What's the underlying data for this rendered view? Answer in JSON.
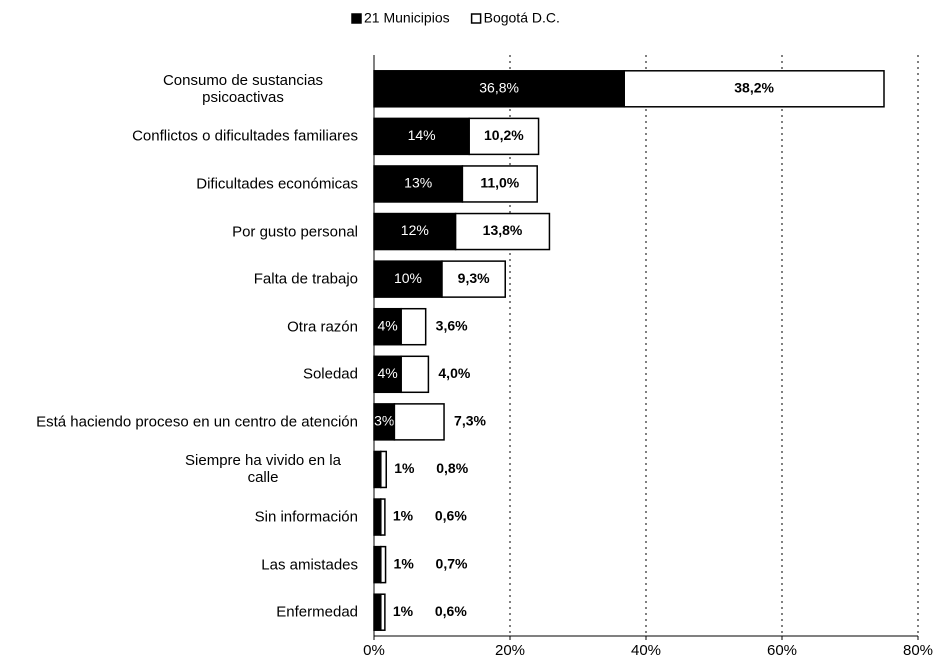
{
  "chart_data": {
    "type": "stacked_bar_horizontal",
    "categories": [
      "Consumo de sustancias psicoactivas",
      "Conflictos o dificultades familiares",
      "Dificultades económicas",
      "Por gusto personal",
      "Falta de trabajo",
      "Otra razón",
      "Soledad",
      "Está haciendo proceso en un centro de atención",
      "Siempre ha vivido en la calle",
      "Sin información",
      "Las amistades",
      "Enfermedad"
    ],
    "series": [
      {
        "name": "21 Municipios",
        "color": "#000000",
        "values": [
          36.8,
          14,
          13,
          12,
          10,
          4,
          4,
          3,
          1,
          1,
          1,
          1
        ],
        "value_labels": [
          "36,8%",
          "14%",
          "13%",
          "12%",
          "10%",
          "4%",
          "4%",
          "3%",
          "1%",
          "1%",
          "1%",
          "1%"
        ]
      },
      {
        "name": "Bogotá D.C.",
        "color": "#ffffff",
        "values": [
          38.2,
          10.2,
          11.0,
          13.8,
          9.3,
          3.6,
          4.0,
          7.3,
          0.8,
          0.6,
          0.7,
          0.6
        ],
        "value_labels": [
          "38,2%",
          "10,2%",
          "11,0%",
          "13,8%",
          "9,3%",
          "3,6%",
          "4,0%",
          "7,3%",
          "0,8%",
          "0,6%",
          "0,7%",
          "0,6%"
        ]
      }
    ],
    "xlim": [
      0,
      80
    ],
    "xticks": [
      {
        "value": 0,
        "label": "0%"
      },
      {
        "value": 20,
        "label": "20%"
      },
      {
        "value": 40,
        "label": "40%"
      },
      {
        "value": 60,
        "label": "60%"
      },
      {
        "value": 80,
        "label": "80%"
      }
    ],
    "grid": true,
    "legend": "top"
  }
}
